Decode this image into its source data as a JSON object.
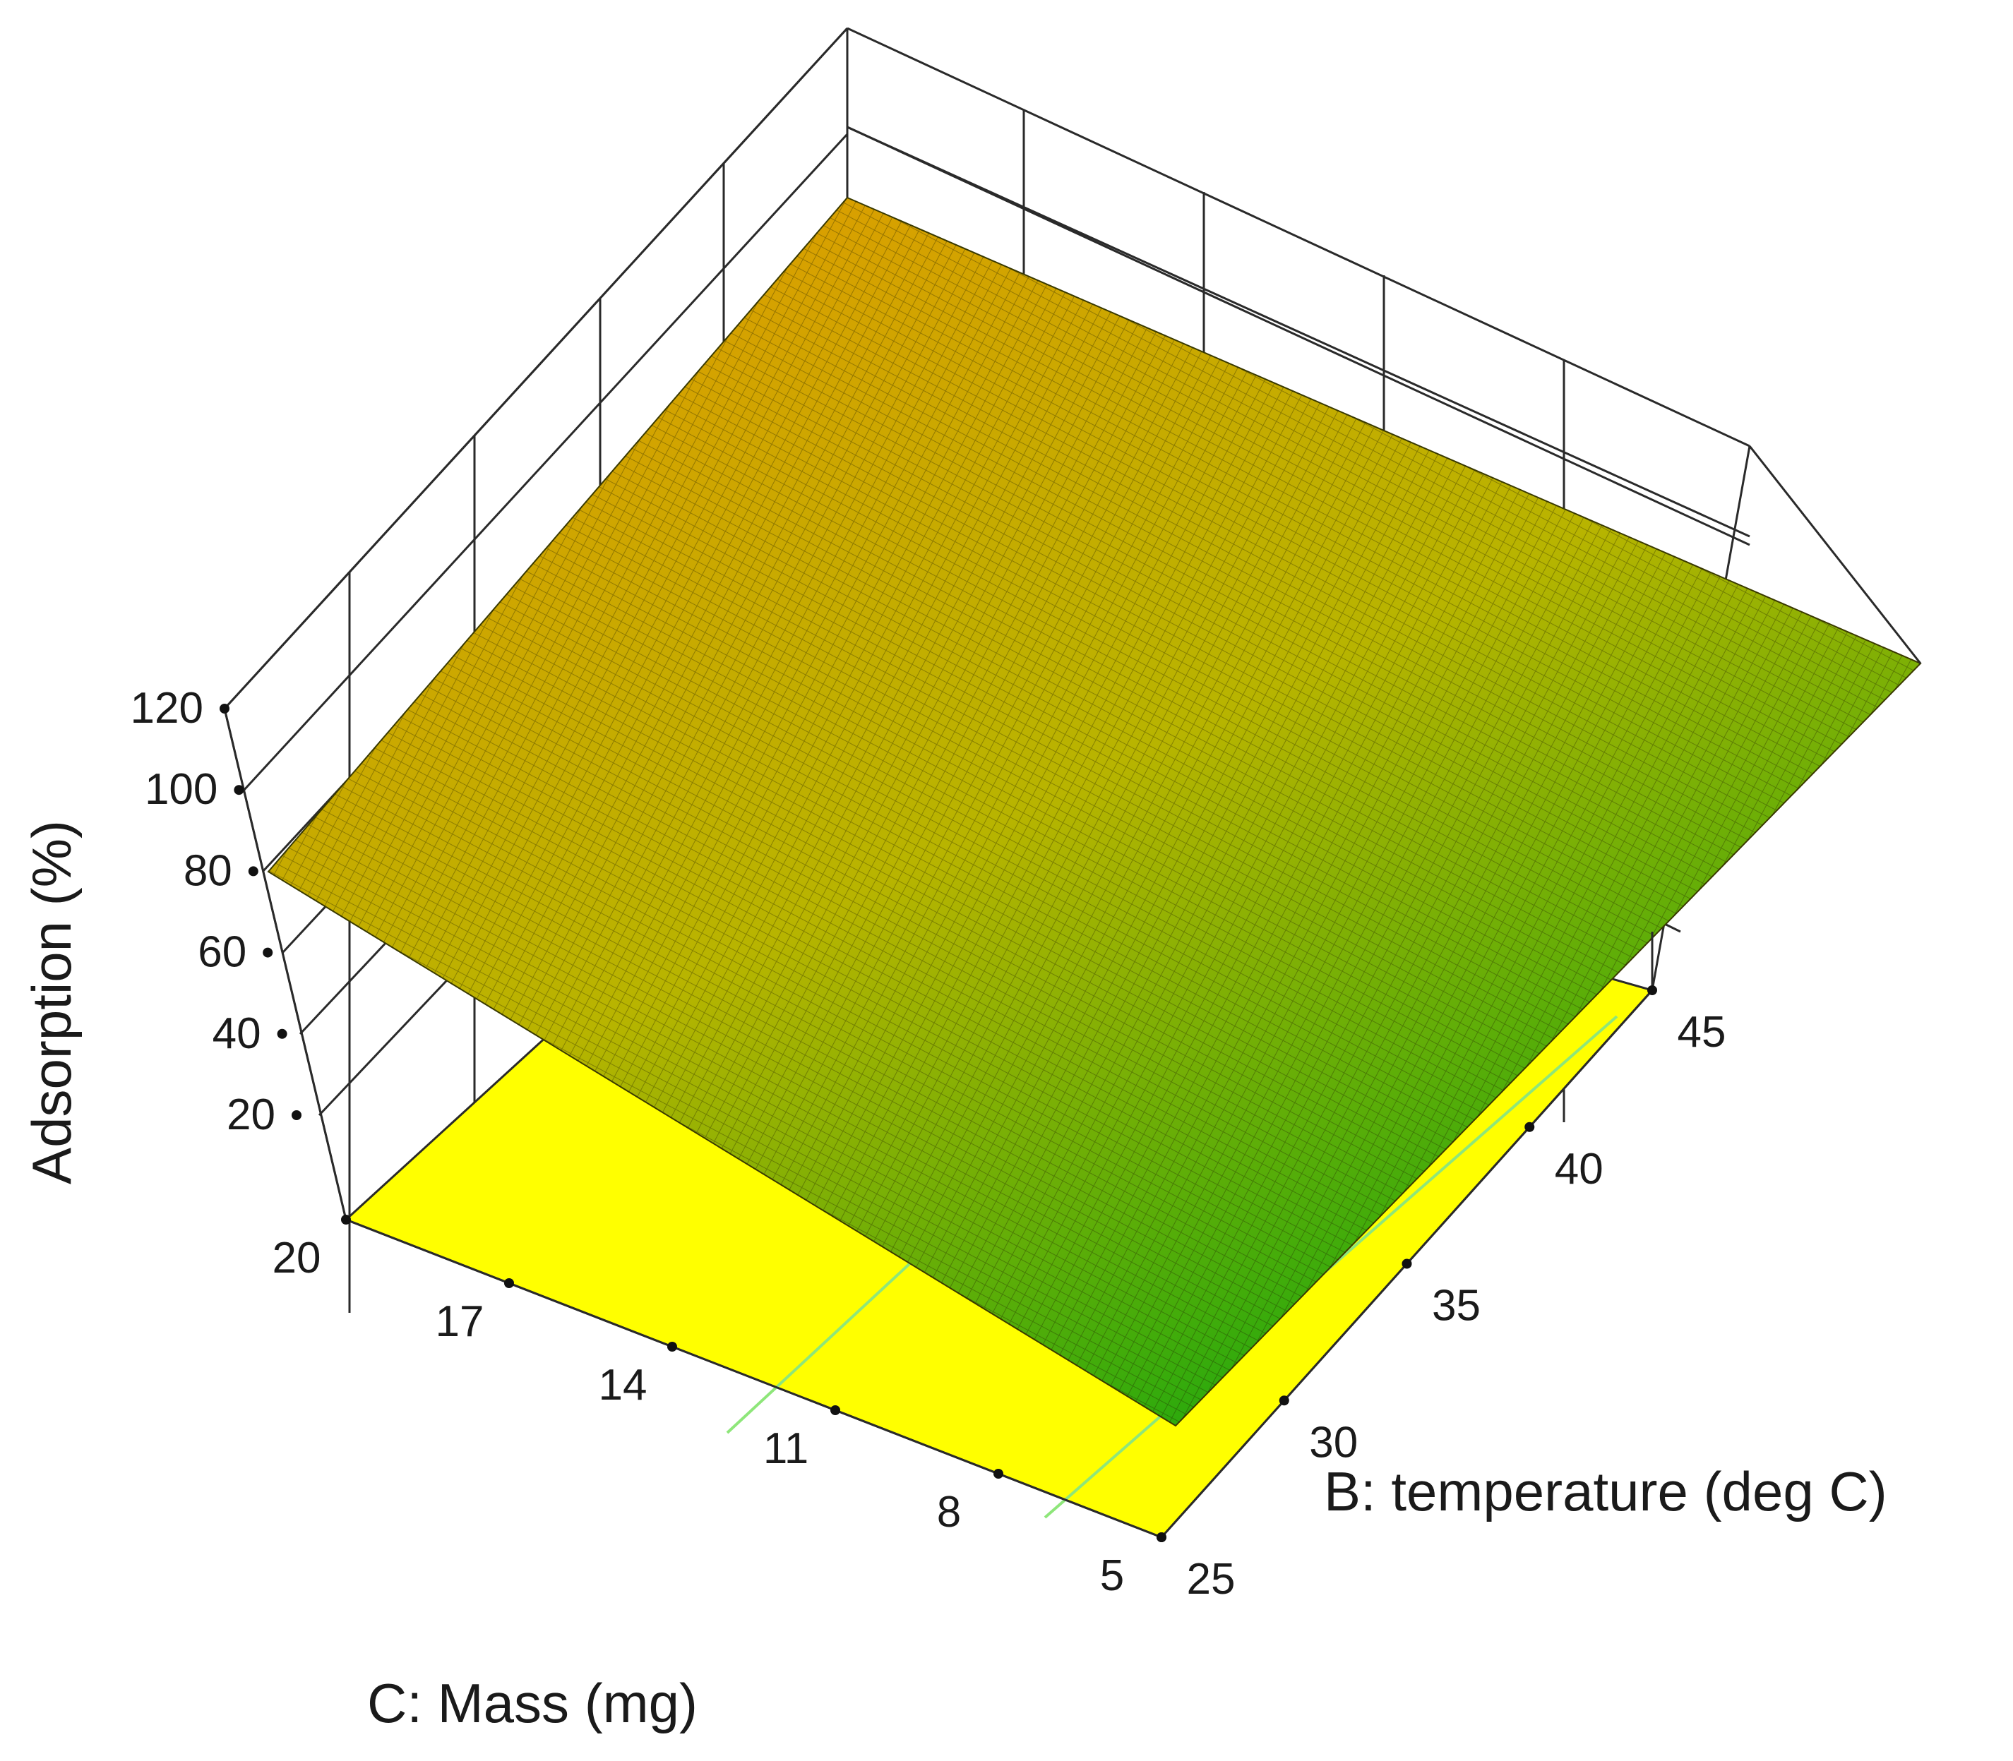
{
  "chart_data": {
    "type": "surface3d",
    "title": "",
    "xlabel": "C: Mass (mg)",
    "ylabel": "B: temperature (deg C)",
    "zlabel": "Adsorption (%)",
    "x_ticks": [
      "5",
      "8",
      "11",
      "14",
      "17",
      "20"
    ],
    "y_ticks": [
      "25",
      "30",
      "35",
      "40",
      "45"
    ],
    "z_ticks": [
      "20",
      "40",
      "60",
      "80",
      "100",
      "120"
    ],
    "xlim": [
      5,
      20
    ],
    "ylim": [
      25,
      45
    ],
    "zlim": [
      20,
      120
    ],
    "grid": true,
    "surface": {
      "corners": [
        {
          "mass": 20,
          "temperature": 25,
          "adsorption": 82
        },
        {
          "mass": 5,
          "temperature": 25,
          "adsorption": 38
        },
        {
          "mass": 5,
          "temperature": 45,
          "adsorption": 70
        },
        {
          "mass": 20,
          "temperature": 45,
          "adsorption": 112
        }
      ],
      "colormap": [
        "#0fa80f",
        "#d8a000"
      ]
    },
    "floor_projection": {
      "color": "#ffff00",
      "contour_color": "#8ee67a"
    }
  },
  "colors": {
    "background": "#ffffff",
    "frame": "#2a2a2a",
    "floor": "#ffff00"
  }
}
